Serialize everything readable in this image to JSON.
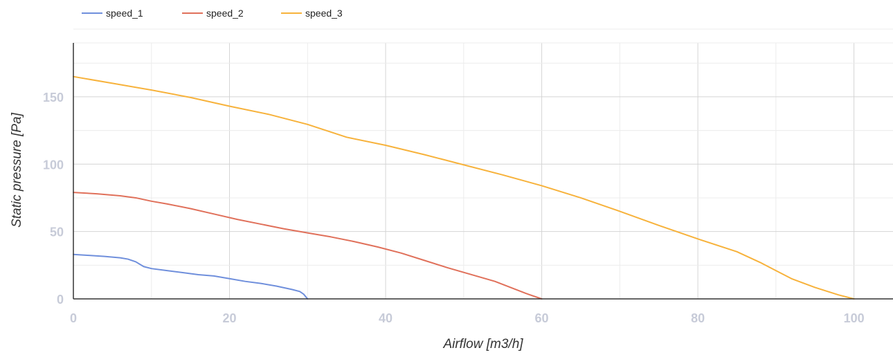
{
  "chart_data": {
    "type": "line",
    "title": "",
    "xlabel": "Airflow [m3/h]",
    "ylabel": "Static pressure [Pa]",
    "xlim": [
      0,
      105
    ],
    "ylim": [
      0,
      190
    ],
    "xticks": [
      0,
      20,
      40,
      60,
      80,
      100
    ],
    "yticks": [
      0,
      50,
      100,
      150
    ],
    "x_minor_grid_step": 10,
    "y_minor_grid_step": 25,
    "grid": true,
    "legend_position": "top-left",
    "series": [
      {
        "name": "speed_1",
        "color": "#6f8fdc",
        "points": [
          [
            0,
            33
          ],
          [
            2,
            32.3
          ],
          [
            4,
            31.5
          ],
          [
            6,
            30.5
          ],
          [
            7,
            29.5
          ],
          [
            8,
            27.5
          ],
          [
            9,
            24
          ],
          [
            10,
            22.5
          ],
          [
            12,
            21
          ],
          [
            14,
            19.5
          ],
          [
            16,
            18
          ],
          [
            18,
            17
          ],
          [
            20,
            15
          ],
          [
            22,
            13
          ],
          [
            24,
            11.5
          ],
          [
            26,
            9.5
          ],
          [
            28,
            7
          ],
          [
            29,
            5.5
          ],
          [
            29.5,
            3.5
          ],
          [
            30,
            0
          ]
        ]
      },
      {
        "name": "speed_2",
        "color": "#e0705a",
        "points": [
          [
            0,
            79
          ],
          [
            3,
            78
          ],
          [
            6,
            76.5
          ],
          [
            8,
            75
          ],
          [
            10,
            72.5
          ],
          [
            12,
            70.5
          ],
          [
            15,
            67
          ],
          [
            18,
            63
          ],
          [
            21,
            59
          ],
          [
            24,
            55.5
          ],
          [
            27,
            52
          ],
          [
            30,
            49
          ],
          [
            33,
            46
          ],
          [
            36,
            42.5
          ],
          [
            39,
            38.5
          ],
          [
            42,
            34
          ],
          [
            45,
            28.5
          ],
          [
            48,
            23
          ],
          [
            51,
            18
          ],
          [
            54,
            13
          ],
          [
            56,
            8.5
          ],
          [
            58,
            4
          ],
          [
            60,
            0
          ]
        ]
      },
      {
        "name": "speed_3",
        "color": "#f7b23b",
        "points": [
          [
            0,
            165
          ],
          [
            5,
            160
          ],
          [
            10,
            155
          ],
          [
            15,
            149.5
          ],
          [
            20,
            143
          ],
          [
            25,
            137
          ],
          [
            30,
            129.5
          ],
          [
            35,
            120
          ],
          [
            40,
            114
          ],
          [
            45,
            107
          ],
          [
            50,
            99.5
          ],
          [
            55,
            92
          ],
          [
            60,
            84
          ],
          [
            65,
            75
          ],
          [
            70,
            65
          ],
          [
            75,
            54.5
          ],
          [
            80,
            44.5
          ],
          [
            85,
            35
          ],
          [
            88,
            27
          ],
          [
            90,
            21
          ],
          [
            92,
            15
          ],
          [
            95,
            8.5
          ],
          [
            98,
            3
          ],
          [
            100,
            0
          ]
        ]
      }
    ]
  }
}
